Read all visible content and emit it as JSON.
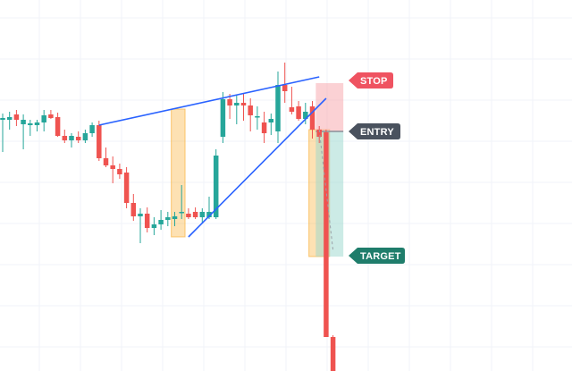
{
  "colors": {
    "background": "#ffffff",
    "grid": "#f0f3f8",
    "bull": "#26a69a",
    "bear": "#ef5350",
    "trendline": "#2962ff",
    "highlight_zone": "#f9a825",
    "stop_zone": "#f8b3b8",
    "target_zone": "#9ad7cd",
    "stop_tag": "#ef5361",
    "entry_tag": "#4a525e",
    "target_tag": "#1f7d6b"
  },
  "labels": {
    "stop": "STOP",
    "entry": "ENTRY",
    "target": "TARGET"
  },
  "chart_data": {
    "type": "candlestick",
    "title": "",
    "xlabel": "",
    "ylabel": "",
    "grid": true,
    "ylim": [
      0,
      415
    ],
    "y_axis_note": "unlabeled price scale; values are relative price units (higher = higher price)",
    "candles": [
      {
        "i": 0,
        "open": 281,
        "high": 288,
        "low": 245,
        "close": 283
      },
      {
        "i": 1,
        "open": 281,
        "high": 290,
        "low": 270,
        "close": 284
      },
      {
        "i": 2,
        "open": 287,
        "high": 292,
        "low": 274,
        "close": 281
      },
      {
        "i": 3,
        "open": 276,
        "high": 287,
        "low": 248,
        "close": 281
      },
      {
        "i": 4,
        "open": 275,
        "high": 281,
        "low": 263,
        "close": 277
      },
      {
        "i": 5,
        "open": 275,
        "high": 281,
        "low": 268,
        "close": 278
      },
      {
        "i": 6,
        "open": 278,
        "high": 292,
        "low": 268,
        "close": 286
      },
      {
        "i": 7,
        "open": 287,
        "high": 292,
        "low": 282,
        "close": 283
      },
      {
        "i": 8,
        "open": 284,
        "high": 289,
        "low": 262,
        "close": 263
      },
      {
        "i": 9,
        "open": 263,
        "high": 270,
        "low": 255,
        "close": 258
      },
      {
        "i": 10,
        "open": 258,
        "high": 266,
        "low": 250,
        "close": 263
      },
      {
        "i": 11,
        "open": 262,
        "high": 268,
        "low": 255,
        "close": 258
      },
      {
        "i": 12,
        "open": 258,
        "high": 270,
        "low": 255,
        "close": 266
      },
      {
        "i": 13,
        "open": 266,
        "high": 278,
        "low": 262,
        "close": 275
      },
      {
        "i": 14,
        "open": 275,
        "high": 280,
        "low": 235,
        "close": 238
      },
      {
        "i": 15,
        "open": 238,
        "high": 250,
        "low": 228,
        "close": 230
      },
      {
        "i": 16,
        "open": 230,
        "high": 240,
        "low": 210,
        "close": 226
      },
      {
        "i": 17,
        "open": 226,
        "high": 232,
        "low": 215,
        "close": 220
      },
      {
        "i": 18,
        "open": 222,
        "high": 228,
        "low": 182,
        "close": 188
      },
      {
        "i": 19,
        "open": 188,
        "high": 198,
        "low": 168,
        "close": 173
      },
      {
        "i": 20,
        "open": 173,
        "high": 182,
        "low": 143,
        "close": 176
      },
      {
        "i": 21,
        "open": 176,
        "high": 183,
        "low": 155,
        "close": 160
      },
      {
        "i": 22,
        "open": 160,
        "high": 172,
        "low": 152,
        "close": 164
      },
      {
        "i": 23,
        "open": 164,
        "high": 180,
        "low": 158,
        "close": 169
      },
      {
        "i": 24,
        "open": 169,
        "high": 178,
        "low": 162,
        "close": 172
      },
      {
        "i": 25,
        "open": 170,
        "high": 178,
        "low": 162,
        "close": 173
      },
      {
        "i": 26,
        "open": 178,
        "high": 208,
        "low": 170,
        "close": 178
      },
      {
        "i": 27,
        "open": 176,
        "high": 182,
        "low": 170,
        "close": 172
      },
      {
        "i": 28,
        "open": 178,
        "high": 183,
        "low": 170,
        "close": 172
      },
      {
        "i": 29,
        "open": 172,
        "high": 182,
        "low": 165,
        "close": 178
      },
      {
        "i": 30,
        "open": 172,
        "high": 195,
        "low": 170,
        "close": 178
      },
      {
        "i": 31,
        "open": 172,
        "high": 248,
        "low": 170,
        "close": 241
      },
      {
        "i": 32,
        "open": 262,
        "high": 312,
        "low": 255,
        "close": 304
      },
      {
        "i": 33,
        "open": 304,
        "high": 310,
        "low": 282,
        "close": 297
      },
      {
        "i": 34,
        "open": 297,
        "high": 308,
        "low": 276,
        "close": 300
      },
      {
        "i": 35,
        "open": 300,
        "high": 310,
        "low": 280,
        "close": 297
      },
      {
        "i": 36,
        "open": 297,
        "high": 305,
        "low": 268,
        "close": 286
      },
      {
        "i": 37,
        "open": 284,
        "high": 296,
        "low": 270,
        "close": 285
      },
      {
        "i": 38,
        "open": 278,
        "high": 290,
        "low": 255,
        "close": 266
      },
      {
        "i": 39,
        "open": 278,
        "high": 288,
        "low": 264,
        "close": 282
      },
      {
        "i": 40,
        "open": 268,
        "high": 335,
        "low": 255,
        "close": 320
      },
      {
        "i": 41,
        "open": 320,
        "high": 345,
        "low": 300,
        "close": 313
      },
      {
        "i": 42,
        "open": 295,
        "high": 318,
        "low": 287,
        "close": 290
      },
      {
        "i": 43,
        "open": 296,
        "high": 302,
        "low": 280,
        "close": 282
      },
      {
        "i": 44,
        "open": 282,
        "high": 300,
        "low": 276,
        "close": 290
      },
      {
        "i": 45,
        "open": 296,
        "high": 302,
        "low": 260,
        "close": 270
      },
      {
        "i": 46,
        "open": 270,
        "high": 274,
        "low": 255,
        "close": 262
      },
      {
        "i": 47,
        "open": 267,
        "high": 270,
        "low": 40,
        "close": 38
      },
      {
        "i": 48,
        "open": 38,
        "high": 40,
        "low": 2,
        "close": 0
      }
    ],
    "trendlines": [
      {
        "name": "upper",
        "from": {
          "i": 14,
          "price": 275
        },
        "to": {
          "i": 46,
          "price": 329
        }
      },
      {
        "name": "lower",
        "from": {
          "i": 27,
          "price": 150
        },
        "to": {
          "i": 47,
          "price": 305
        }
      },
      {
        "name": "dashed-projection",
        "from": {
          "i": 46,
          "price": 270
        },
        "to": {
          "i": 48,
          "price": 135
        },
        "dashed": true
      }
    ],
    "highlight_zones": [
      {
        "from_i": 25,
        "to_i": 26,
        "top": 293,
        "bottom": 150
      },
      {
        "from_i": 45,
        "to_i": 47,
        "top": 270,
        "bottom": 128
      }
    ],
    "position": {
      "stop_top": 322,
      "entry": 268,
      "target": 128,
      "from_i": 46,
      "to_i": 49
    }
  }
}
